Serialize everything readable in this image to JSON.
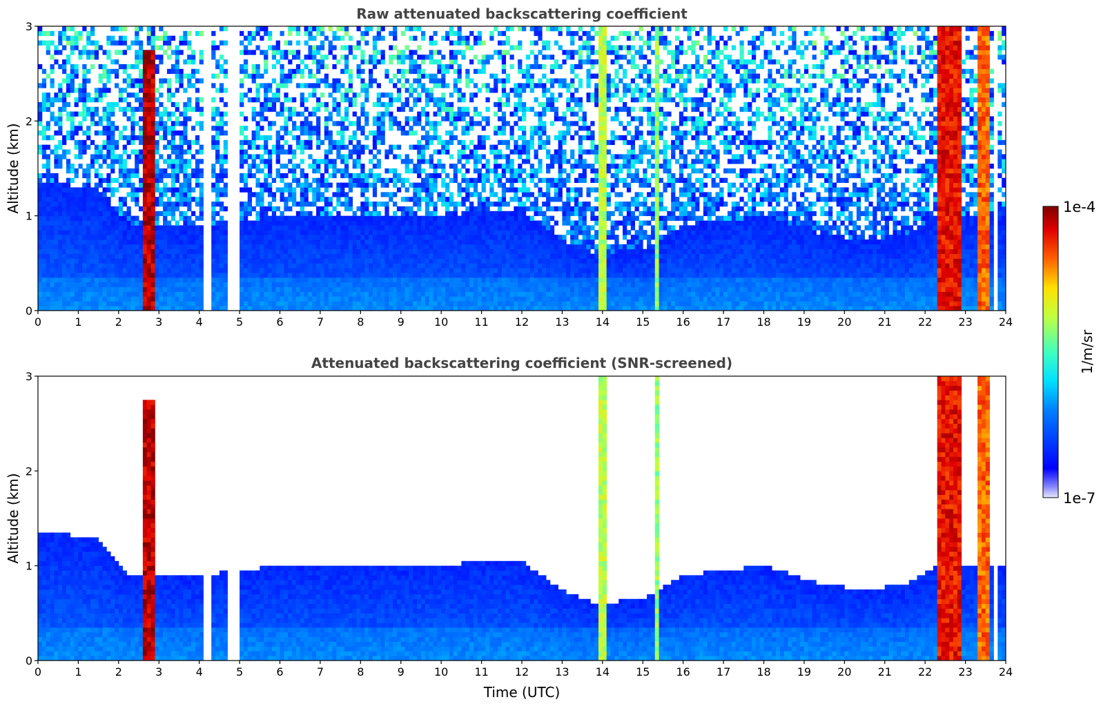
{
  "chart_data": [
    {
      "type": "heatmap",
      "title": "Raw attenuated backscattering coefficient",
      "xlabel": "",
      "ylabel": "Altitude (km)",
      "xlim": [
        0,
        24
      ],
      "ylim": [
        0,
        3
      ],
      "x_ticks": [
        "0",
        "1",
        "2",
        "3",
        "4",
        "5",
        "6",
        "7",
        "8",
        "9",
        "10",
        "11",
        "12",
        "13",
        "14",
        "15",
        "16",
        "17",
        "18",
        "19",
        "20",
        "21",
        "22",
        "23",
        "24"
      ],
      "y_ticks": [
        "0",
        "1",
        "2",
        "3"
      ],
      "data_gaps_utc": [
        [
          4.1,
          4.25
        ],
        [
          4.75,
          4.85
        ],
        [
          4.9,
          4.95
        ],
        [
          23.75,
          23.8
        ]
      ],
      "features": [
        {
          "t": [
            13.9,
            14.1
          ],
          "top_km": 3.0,
          "level": 0.62
        },
        {
          "t": [
            15.3,
            15.45
          ],
          "top_km": 3.0,
          "level": 0.58
        },
        {
          "t": [
            22.35,
            22.95
          ],
          "top_km": 3.0,
          "level": 0.9
        },
        {
          "t": [
            23.35,
            23.6
          ],
          "top_km": 3.0,
          "level": 0.82
        },
        {
          "t": [
            2.65,
            2.85
          ],
          "top_km": 2.75,
          "level": 0.95
        }
      ]
    },
    {
      "type": "heatmap",
      "title": "Attenuated backscattering coefficient (SNR-screened)",
      "xlabel": "Time (UTC)",
      "ylabel": "Altitude (km)",
      "xlim": [
        0,
        24
      ],
      "ylim": [
        0,
        3
      ],
      "x_ticks": [
        "0",
        "1",
        "2",
        "3",
        "4",
        "5",
        "6",
        "7",
        "8",
        "9",
        "10",
        "11",
        "12",
        "13",
        "14",
        "15",
        "16",
        "17",
        "18",
        "19",
        "20",
        "21",
        "22",
        "23",
        "24"
      ],
      "y_ticks": [
        "0",
        "1",
        "2",
        "3"
      ],
      "boundary_layer_top_km": [
        {
          "t": 0,
          "z": 1.35
        },
        {
          "t": 1.5,
          "z": 1.3
        },
        {
          "t": 2.2,
          "z": 0.9
        },
        {
          "t": 4,
          "z": 0.9
        },
        {
          "t": 6,
          "z": 1.0
        },
        {
          "t": 9,
          "z": 1.0
        },
        {
          "t": 12,
          "z": 1.05
        },
        {
          "t": 13,
          "z": 0.75
        },
        {
          "t": 13.8,
          "z": 0.6
        },
        {
          "t": 15,
          "z": 0.65
        },
        {
          "t": 16,
          "z": 0.9
        },
        {
          "t": 18,
          "z": 1.0
        },
        {
          "t": 19.5,
          "z": 0.8
        },
        {
          "t": 20.5,
          "z": 0.75
        },
        {
          "t": 21.5,
          "z": 0.8
        },
        {
          "t": 22.3,
          "z": 1.0
        },
        {
          "t": 24,
          "z": 1.0
        }
      ]
    }
  ],
  "colorbar": {
    "label": "1/m/sr",
    "max_label": "1e-4",
    "min_label": "1e-7",
    "colormap": "jet"
  },
  "colors": {
    "title": "#444444",
    "axis": "#000000"
  }
}
